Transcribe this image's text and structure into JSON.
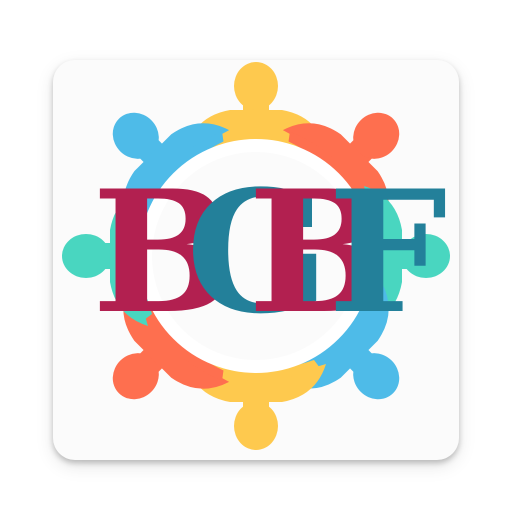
{
  "app_icon": {
    "letters": [
      {
        "char": "B",
        "color": "#b22050"
      },
      {
        "char": "G",
        "color": "#23809a"
      },
      {
        "char": "B",
        "color": "#b22050"
      },
      {
        "char": "F",
        "color": "#23809a"
      }
    ],
    "figure_colors": {
      "top": "#fec94e",
      "bottom": "#fec94e",
      "upper_left": "#4ebbe8",
      "lower_right": "#4ebbe8",
      "upper_right": "#fe6f4f",
      "lower_left": "#fe6f4f",
      "left": "#49d6c0",
      "right": "#49d6c0"
    },
    "ring_color": "#ffffff"
  }
}
